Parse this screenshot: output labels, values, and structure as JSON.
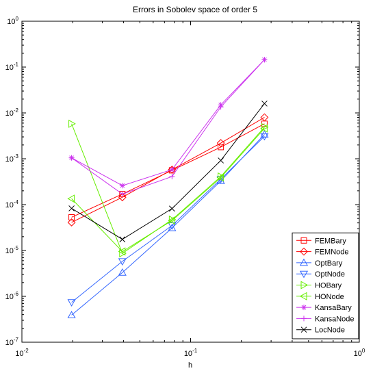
{
  "chart_data": {
    "type": "line",
    "title": "Errors in Sobolev space of order 5",
    "xlabel": "h",
    "ylabel": "",
    "xscale": "log",
    "yscale": "log",
    "xlim": [
      0.01,
      1
    ],
    "ylim": [
      1e-07,
      1
    ],
    "x_ticks": [
      {
        "value": 0.01,
        "base": "10",
        "exp": "-2"
      },
      {
        "value": 0.1,
        "base": "10",
        "exp": "-1"
      },
      {
        "value": 1,
        "base": "10",
        "exp": "0"
      }
    ],
    "y_ticks": [
      {
        "value": 1e-07,
        "base": "10",
        "exp": "-7"
      },
      {
        "value": 1e-06,
        "base": "10",
        "exp": "-6"
      },
      {
        "value": 1e-05,
        "base": "10",
        "exp": "-5"
      },
      {
        "value": 0.0001,
        "base": "10",
        "exp": "-4"
      },
      {
        "value": 0.001,
        "base": "10",
        "exp": "-3"
      },
      {
        "value": 0.01,
        "base": "10",
        "exp": "-2"
      },
      {
        "value": 0.1,
        "base": "10",
        "exp": "-1"
      },
      {
        "value": 1,
        "base": "10",
        "exp": "0"
      }
    ],
    "grid": false,
    "legend_position": "bottom-right",
    "x": [
      0.0197,
      0.0394,
      0.0776,
      0.151,
      0.274
    ],
    "series": [
      {
        "name": "FEMBary",
        "color": "#ff0000",
        "marker": "square",
        "values": [
          5.3e-05,
          0.00017,
          0.00056,
          0.0018,
          0.0058
        ]
      },
      {
        "name": "FEMNode",
        "color": "#ff0000",
        "marker": "diamond",
        "values": [
          4.1e-05,
          0.000145,
          0.00058,
          0.0022,
          0.008
        ]
      },
      {
        "name": "OptBary",
        "color": "#3366ff",
        "marker": "triangle-up",
        "values": [
          3.9e-07,
          3.3e-06,
          3.1e-05,
          0.00033,
          0.0034
        ]
      },
      {
        "name": "OptNode",
        "color": "#3366ff",
        "marker": "triangle-down",
        "values": [
          7.4e-07,
          5.8e-06,
          3.5e-05,
          0.00036,
          0.0031
        ]
      },
      {
        "name": "HOBary",
        "color": "#66ee00",
        "marker": "triangle-right",
        "values": [
          0.0058,
          8.7e-06,
          4.7e-05,
          0.00041,
          0.0049
        ]
      },
      {
        "name": "HONode",
        "color": "#66ee00",
        "marker": "triangle-left",
        "values": [
          0.000135,
          9.5e-06,
          4.5e-05,
          0.00039,
          0.0046
        ]
      },
      {
        "name": "KansaBary",
        "color": "#cc33ee",
        "marker": "asterisk",
        "values": [
          0.00105,
          0.00026,
          0.00058,
          0.015,
          0.145
        ]
      },
      {
        "name": "KansaNode",
        "color": "#cc33ee",
        "marker": "plus",
        "values": [
          0.00105,
          0.00017,
          0.00041,
          0.0135,
          0.145
        ]
      },
      {
        "name": "LocNode",
        "color": "#000000",
        "marker": "x",
        "values": [
          8.3e-05,
          1.75e-05,
          8.2e-05,
          0.00092,
          0.016
        ]
      }
    ]
  }
}
